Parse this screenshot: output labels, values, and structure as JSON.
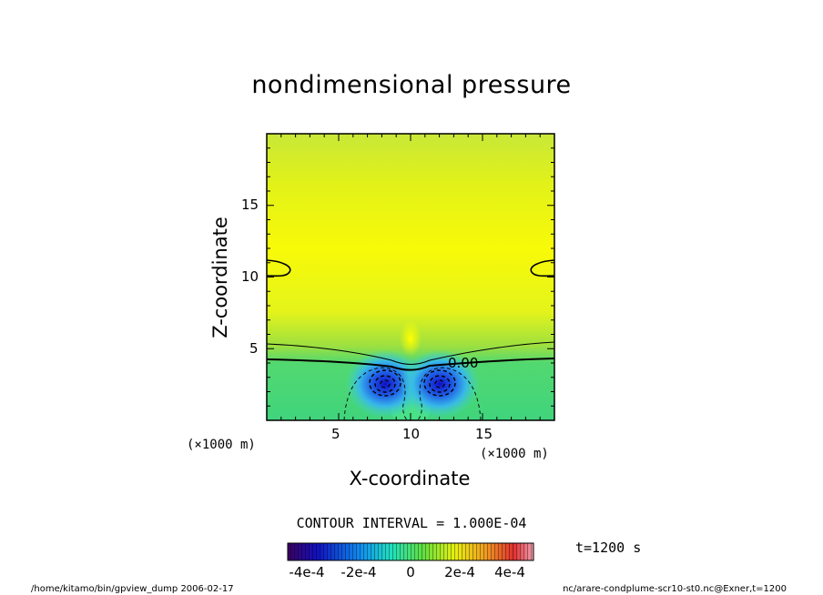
{
  "chart_data": {
    "type": "heatmap",
    "title": "nondimensional pressure",
    "xlabel": "X-coordinate",
    "ylabel": "Z-coordinate",
    "x_unit": "(×1000 m)",
    "z_unit": "(×1000 m)",
    "xlim": [
      0,
      20
    ],
    "ylim": [
      0,
      20
    ],
    "x_ticks": [
      "5",
      "10",
      "15"
    ],
    "y_ticks": [
      "5",
      "10",
      "15"
    ],
    "contour_label": "0.00",
    "contour_interval": "CONTOUR INTERVAL = 1.000E-04",
    "colorbar_ticks": [
      "-4e-4",
      "-2e-4",
      "0",
      "2e-4",
      "4e-4"
    ],
    "colorbar_range": [
      -0.0005,
      0.0005
    ],
    "minima": [
      {
        "x": 8.2,
        "z": 2.5,
        "value": -0.0004
      },
      {
        "x": 12.0,
        "z": 2.5,
        "value": -0.0004
      }
    ],
    "time": "t=1200 s"
  },
  "footer": {
    "left": "/home/kitamo/bin/gpview_dump  2006-02-17",
    "right": "nc/arare-condplume-scr10-st0.nc@Exner,t=1200"
  }
}
